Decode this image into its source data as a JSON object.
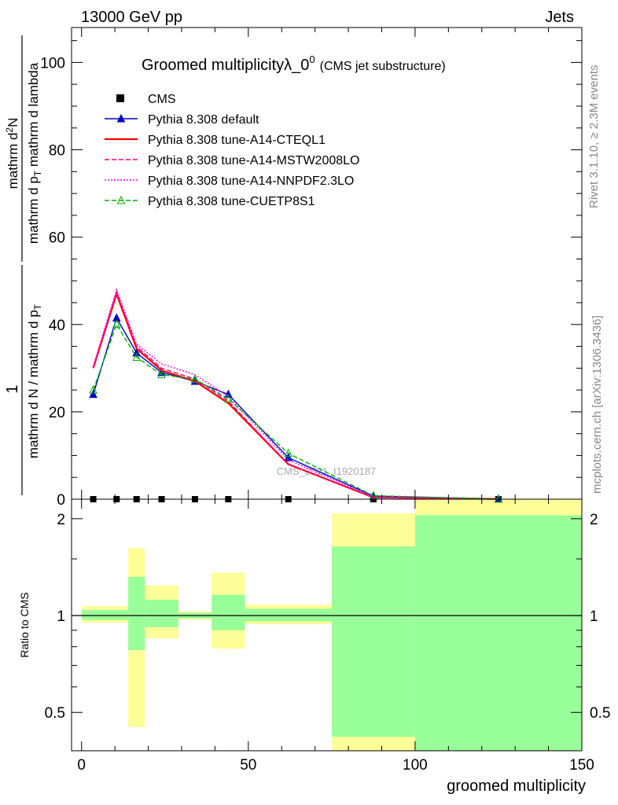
{
  "header": {
    "left": "13000 GeV pp",
    "right": "Jets"
  },
  "side_labels": {
    "top": "Rivet 3.1.10, ≥ 2.3M events",
    "bottom": "mcplots.cern.ch [arXiv:1306.3436]"
  },
  "watermark": "CMS_2021_I1920187",
  "chart_data": {
    "type": "line",
    "title": "Groomed multiplicityλ_0",
    "title_superscript": "0",
    "title_suffix": "(CMS jet substructure)",
    "ylabel": {
      "numerator_base": "mathrm d",
      "numerator_superscript": "2",
      "numerator_tail": "N",
      "numerator_denominator": "mathrm d p",
      "numerator_subscript_1": "T",
      "numerator_tail_2": "mathrm d lambda",
      "prefactor_top": "1",
      "prefactor_bottom_1": "mathrm d N / mathrm d p",
      "prefactor_subscript": "T"
    },
    "xlabel": "groomed multiplicity",
    "ratio_ylabel": "Ratio to CMS",
    "xlim": [
      -3,
      150
    ],
    "ylim": [
      0,
      108
    ],
    "ratio_ylim": [
      0.38,
      2.3
    ],
    "x_ticks": [
      0,
      50,
      100,
      150
    ],
    "y_ticks": [
      0,
      20,
      40,
      60,
      80,
      100
    ],
    "ratio_ticks": [
      0.5,
      1,
      2
    ],
    "bin_edges": [
      0,
      7,
      14,
      19,
      29,
      39,
      49,
      75,
      100,
      150
    ],
    "series": [
      {
        "name": "CMS",
        "style": "data",
        "color": "#000000",
        "x": [
          3.5,
          10.5,
          16.5,
          24,
          34,
          44,
          62,
          87.5,
          125
        ],
        "y": [
          0,
          0,
          0,
          0,
          0,
          0,
          0,
          0,
          0
        ]
      },
      {
        "name": "Pythia 8.308 default",
        "style": "solid",
        "marker": "triangle",
        "color": "#0000c8",
        "x": [
          3.5,
          10.5,
          16.5,
          24,
          34,
          44,
          62,
          87.5,
          125
        ],
        "y": [
          24,
          41.5,
          33.5,
          29,
          27,
          24,
          9.5,
          0.7,
          0.05
        ]
      },
      {
        "name": "Pythia 8.308 tune-A14-CTEQL1",
        "style": "solid",
        "color": "#ff0000",
        "x": [
          3.5,
          10.5,
          16.5,
          24,
          34,
          44,
          62,
          87.5,
          125
        ],
        "y": [
          30,
          47,
          34.5,
          29.5,
          27,
          22,
          8,
          0.4,
          0.05
        ]
      },
      {
        "name": "Pythia 8.308 tune-A14-MSTW2008LO",
        "style": "dashed",
        "color": "#ff0080",
        "x": [
          3.5,
          10.5,
          16.5,
          24,
          34,
          44,
          62,
          87.5,
          125
        ],
        "y": [
          30,
          47.5,
          35,
          30,
          27.5,
          22.5,
          8,
          0.4,
          0.05
        ]
      },
      {
        "name": "Pythia 8.308 tune-A14-NNPDF2.3LO",
        "style": "dotted",
        "color": "#ff00ff",
        "x": [
          3.5,
          10.5,
          16.5,
          24,
          34,
          44,
          62,
          87.5,
          125
        ],
        "y": [
          30.5,
          48,
          35.5,
          31,
          28.5,
          23.5,
          9,
          0.5,
          0.05
        ]
      },
      {
        "name": "Pythia 8.308 tune-CUETP8S1",
        "style": "dashed",
        "marker": "open-triangle",
        "color": "#00b400",
        "x": [
          3.5,
          10.5,
          16.5,
          24,
          34,
          44,
          62,
          87.5,
          125
        ],
        "y": [
          25,
          40,
          32.5,
          28.5,
          27.5,
          23,
          10.5,
          0.8,
          0.05
        ]
      }
    ],
    "ratio_bands": {
      "colors": {
        "outer": "#ffff99",
        "inner": "#99ff99"
      },
      "bins": [
        {
          "x0": 0,
          "x1": 14,
          "outer": [
            0.95,
            1.07
          ],
          "inner": [
            0.97,
            1.04
          ]
        },
        {
          "x0": 14,
          "x1": 19,
          "outer": [
            0.45,
            1.62
          ],
          "inner": [
            0.78,
            1.32
          ]
        },
        {
          "x0": 19,
          "x1": 29,
          "outer": [
            0.85,
            1.24
          ],
          "inner": [
            0.92,
            1.12
          ]
        },
        {
          "x0": 29,
          "x1": 39,
          "outer": [
            0.97,
            1.03
          ],
          "inner": [
            0.98,
            1.02
          ]
        },
        {
          "x0": 39,
          "x1": 49,
          "outer": [
            0.79,
            1.36
          ],
          "inner": [
            0.9,
            1.16
          ]
        },
        {
          "x0": 49,
          "x1": 75,
          "outer": [
            0.94,
            1.08
          ],
          "inner": [
            0.96,
            1.05
          ]
        },
        {
          "x0": 75,
          "x1": 100,
          "outer": [
            0.38,
            2.08
          ],
          "inner": [
            0.42,
            1.64
          ]
        },
        {
          "x0": 100,
          "x1": 150,
          "outer": [
            0.38,
            2.3
          ],
          "inner": [
            0.38,
            2.05
          ]
        }
      ]
    },
    "legend_position": "top-left"
  }
}
